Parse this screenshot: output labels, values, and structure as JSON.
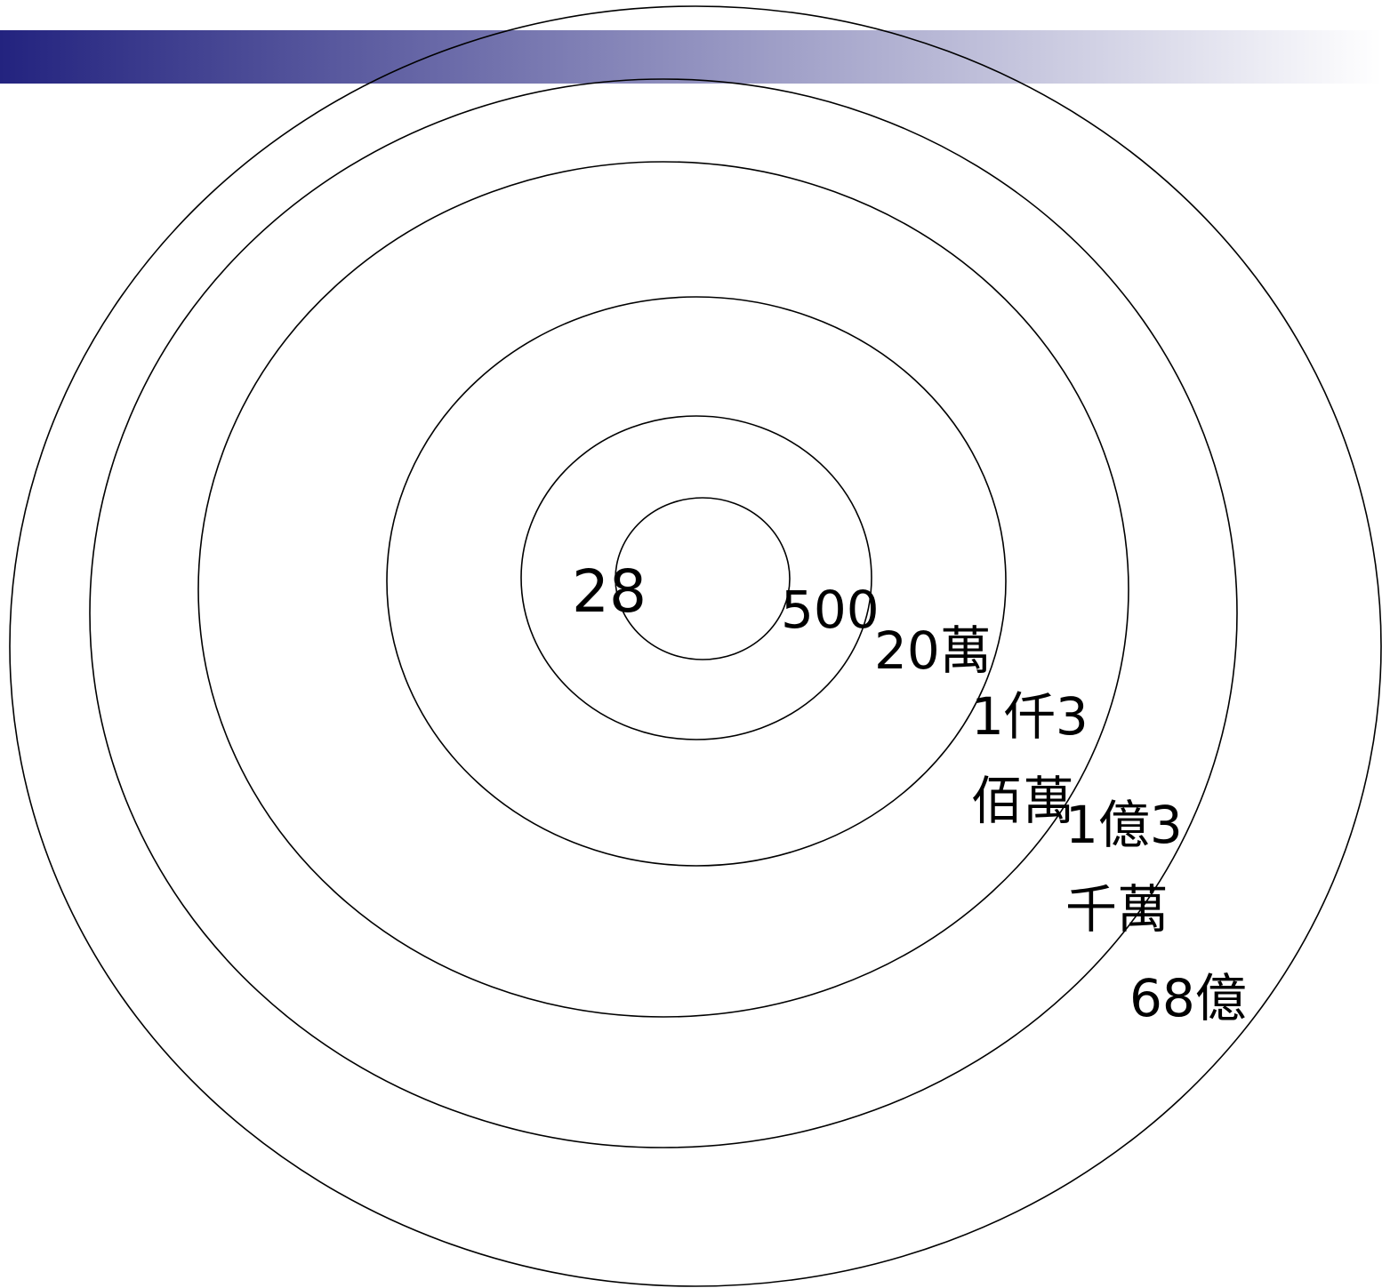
{
  "theme": {
    "band_start_color": "#23237f",
    "band_end_color": "#ffffff",
    "line_color": "#000000",
    "text_color": "#000000"
  },
  "rings": [
    {
      "name": "ring-28",
      "label_lines": [
        "28"
      ]
    },
    {
      "name": "ring-500",
      "label_lines": [
        "500"
      ]
    },
    {
      "name": "ring-20-wan",
      "label_lines": [
        "20萬"
      ]
    },
    {
      "name": "ring-1qian3bai-wan",
      "label_lines": [
        "1仟3",
        "佰萬"
      ]
    },
    {
      "name": "ring-1yi3qian-wan",
      "label_lines": [
        "1億3",
        "千萬"
      ]
    },
    {
      "name": "ring-68-yi",
      "label_lines": [
        "68億"
      ]
    }
  ]
}
